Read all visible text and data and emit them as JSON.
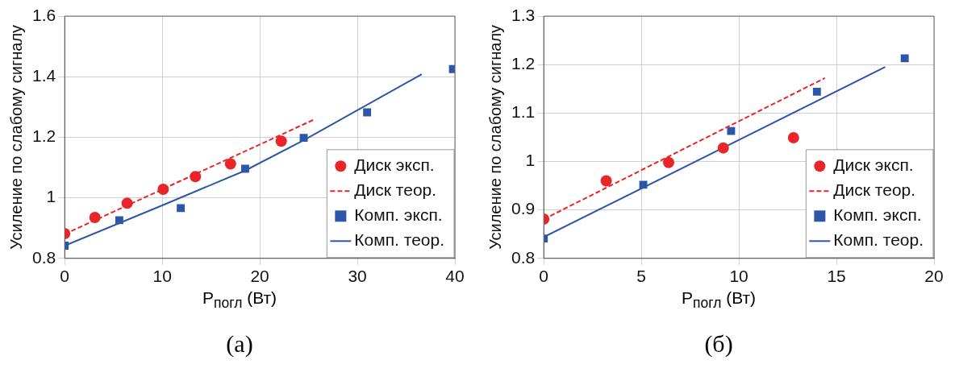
{
  "chart_data": [
    {
      "type": "scatter",
      "xlabel": "P$_{погл}$ (Вт)",
      "ylabel": "Усиление по слабому сигналу",
      "xlim": [
        0,
        40
      ],
      "ylim": [
        0.8,
        1.6
      ],
      "xticks": [
        0,
        10,
        20,
        30,
        40
      ],
      "yticks": [
        0.8,
        1,
        1.2,
        1.4,
        1.6
      ],
      "grid": true,
      "legend": "bottom right",
      "annotations": [
        "(a)"
      ],
      "series": [
        {
          "name": "Диск эксп.",
          "type": "scatter",
          "marker": "circle",
          "color": "#e8262a",
          "x": [
            0,
            3.1,
            6.4,
            10.1,
            13.4,
            17.0,
            22.2
          ],
          "values": [
            0.882,
            0.935,
            0.982,
            1.028,
            1.07,
            1.112,
            1.187
          ]
        },
        {
          "name": "Диск теор.",
          "type": "line",
          "line_style": "dashed",
          "color": "#e8262a",
          "x": [
            0,
            25.6
          ],
          "values": [
            0.88,
            1.259
          ]
        },
        {
          "name": "Комп. эксп.",
          "type": "scatter",
          "marker": "square",
          "color": "#2e56a8",
          "x": [
            0,
            5.6,
            11.9,
            18.5,
            24.5,
            31.0,
            39.8
          ],
          "values": [
            0.842,
            0.926,
            0.966,
            1.096,
            1.198,
            1.282,
            1.425
          ]
        },
        {
          "name": "Комп. теор.",
          "type": "line",
          "line_style": "solid",
          "color": "#2e56a8",
          "x": [
            0,
            10,
            18.5,
            24.5,
            36.6
          ],
          "values": [
            0.842,
            0.975,
            1.09,
            1.19,
            1.408
          ]
        }
      ]
    },
    {
      "type": "scatter",
      "xlabel": "P$_{погл}$ (Вт)",
      "ylabel": "Усиление по слабому сигналу",
      "xlim": [
        0,
        20
      ],
      "ylim": [
        0.8,
        1.3
      ],
      "xticks": [
        0,
        5,
        10,
        15,
        20
      ],
      "yticks": [
        0.8,
        0.9,
        1,
        1.1,
        1.2,
        1.3
      ],
      "grid": true,
      "legend": "bottom right",
      "annotations": [
        "(б)"
      ],
      "series": [
        {
          "name": "Диск эксп.",
          "type": "scatter",
          "marker": "circle",
          "color": "#e8262a",
          "x": [
            0,
            3.2,
            6.4,
            9.2,
            12.8
          ],
          "values": [
            0.881,
            0.96,
            0.998,
            1.028,
            1.049
          ]
        },
        {
          "name": "Диск теор.",
          "type": "line",
          "line_style": "dashed",
          "color": "#e8262a",
          "x": [
            0,
            14.4
          ],
          "values": [
            0.881,
            1.172
          ]
        },
        {
          "name": "Комп. эксп.",
          "type": "scatter",
          "marker": "square",
          "color": "#2e56a8",
          "x": [
            0,
            5.1,
            9.6,
            14.0,
            18.5
          ],
          "values": [
            0.841,
            0.952,
            1.063,
            1.144,
            1.213
          ]
        },
        {
          "name": "Комп. теор.",
          "type": "line",
          "line_style": "solid",
          "color": "#2e56a8",
          "x": [
            0,
            17.5
          ],
          "values": [
            0.844,
            1.195
          ]
        }
      ]
    }
  ]
}
